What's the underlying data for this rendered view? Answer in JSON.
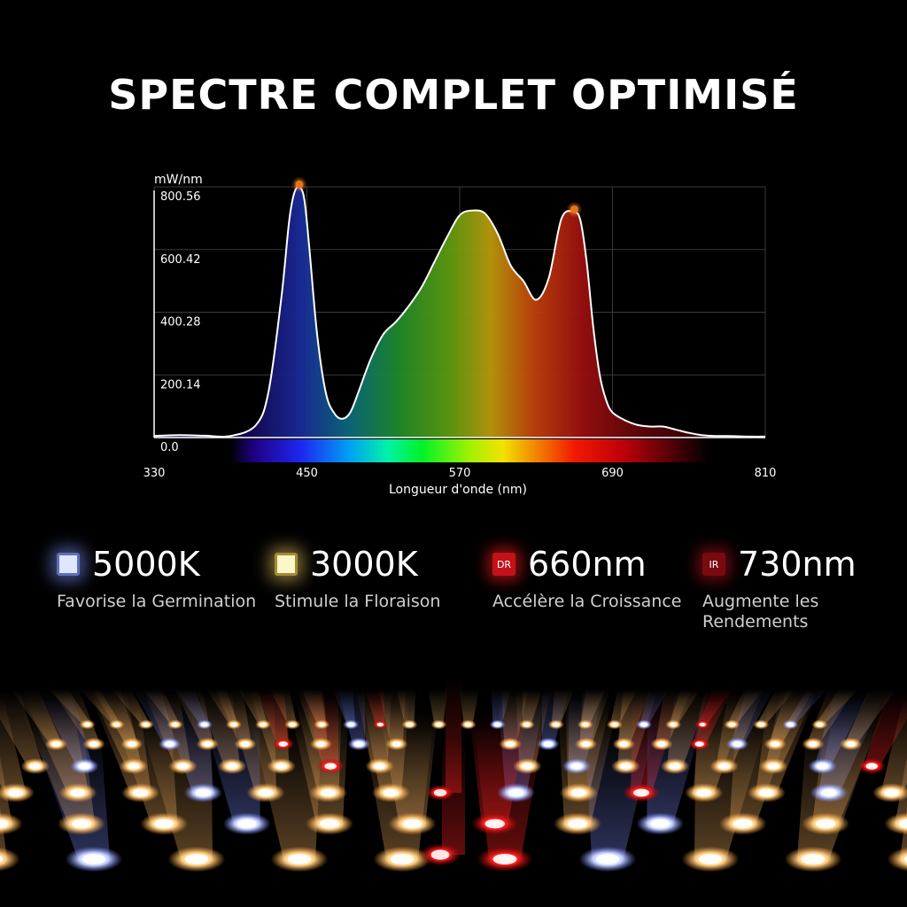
{
  "title": "SPECTRE COMPLET OPTIMISÉ",
  "chart_data": {
    "type": "area",
    "ylabel": "mW/nm",
    "xlabel": "Longueur d'onde (nm)",
    "xlim": [
      330,
      810
    ],
    "ylim": [
      0,
      800.56
    ],
    "yticks": [
      "0.0",
      "200.14",
      "400.28",
      "600.42",
      "800.56"
    ],
    "xticks": [
      "330",
      "450",
      "570",
      "690",
      "810"
    ],
    "grid": true,
    "series": [
      {
        "x": [
          330,
          350,
          370,
          390,
          410,
          420,
          430,
          436,
          440,
          444,
          448,
          452,
          458,
          465,
          472,
          478,
          484,
          490,
          500,
          510,
          520,
          530,
          540,
          550,
          560,
          570,
          580,
          590,
          600,
          610,
          620,
          630,
          640,
          650,
          660,
          665,
          670,
          675,
          680,
          685,
          690,
          700,
          710,
          720,
          730,
          740,
          750,
          760,
          770,
          780,
          790,
          800,
          810
        ],
        "y": [
          5,
          8,
          6,
          5,
          40,
          150,
          450,
          690,
          780,
          800,
          760,
          600,
          330,
          140,
          75,
          60,
          80,
          140,
          250,
          330,
          370,
          420,
          480,
          560,
          640,
          710,
          725,
          715,
          650,
          550,
          500,
          440,
          510,
          700,
          720,
          690,
          550,
          350,
          200,
          120,
          80,
          55,
          40,
          35,
          35,
          25,
          15,
          8,
          5,
          5,
          4,
          3,
          3
        ]
      }
    ],
    "peaks": [
      {
        "x": 444,
        "y": 800
      },
      {
        "x": 660,
        "y": 720
      }
    ],
    "colors": {
      "curve": "#ffffff",
      "peak": "#e8731c",
      "grid": "#3a3a3a"
    }
  },
  "features": [
    {
      "icon": "cool-white-led-icon",
      "value": "5000K",
      "description": "Favorise la Germination"
    },
    {
      "icon": "warm-white-led-icon",
      "badge": "",
      "value": "3000K",
      "description": "Stimule la Floraison"
    },
    {
      "icon": "deep-red-led-icon",
      "badge": "DR",
      "value": "660nm",
      "description": "Accélère la Croissance"
    },
    {
      "icon": "infrared-led-icon",
      "badge": "IR",
      "value": "730nm",
      "description": "Augmente les Rendements"
    }
  ]
}
